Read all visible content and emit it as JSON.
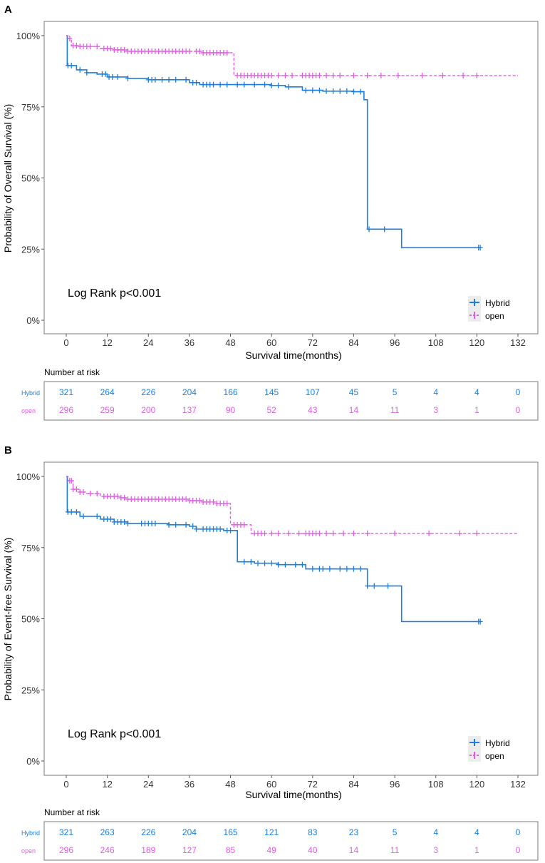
{
  "panels": [
    {
      "letter": "A",
      "ylabel": "Probability of Overall Survival (%)",
      "xlabel": "Survival time(months)",
      "annotation": "Log Rank p<0.001",
      "risk_title": "Number at risk"
    },
    {
      "letter": "B",
      "ylabel": "Probability of Event-free Survival (%)",
      "xlabel": "Survival time(months)",
      "annotation": "Log Rank p<0.001",
      "risk_title": "Number at risk"
    }
  ],
  "legend": {
    "hybrid": "Hybrid",
    "open": "open"
  },
  "colors": {
    "hybrid": "#1a7fe0",
    "open": "#e35be8"
  },
  "chart_data": [
    {
      "type": "line",
      "title": "A",
      "xlabel": "Survival time(months)",
      "ylabel": "Probability of Overall Survival (%)",
      "xlim": [
        0,
        132
      ],
      "ylim": [
        0,
        100
      ],
      "xticks": [
        0,
        12,
        24,
        36,
        48,
        60,
        72,
        84,
        96,
        108,
        120,
        132
      ],
      "yticks": [
        "0%",
        "25%",
        "50%",
        "75%",
        "100%"
      ],
      "series": [
        {
          "name": "Hybrid",
          "steps": [
            [
              0,
              100
            ],
            [
              0.3,
              89.5
            ],
            [
              3,
              88
            ],
            [
              6,
              87
            ],
            [
              9,
              86.5
            ],
            [
              12,
              85.5
            ],
            [
              18,
              85
            ],
            [
              24,
              84.5
            ],
            [
              36,
              83.5
            ],
            [
              39,
              82.8
            ],
            [
              60,
              82.5
            ],
            [
              64,
              82
            ],
            [
              69,
              80.8
            ],
            [
              75,
              80.5
            ],
            [
              84,
              80.3
            ],
            [
              87,
              77.5
            ],
            [
              88,
              32
            ],
            [
              98,
              25.5
            ],
            [
              121,
              25.5
            ]
          ],
          "censor": [
            0.5,
            1.5,
            4,
            6,
            10.5,
            11.5,
            12.5,
            13.5,
            15,
            18,
            24,
            25,
            26,
            28,
            30,
            32,
            35,
            37,
            38,
            40,
            41,
            42,
            43,
            45,
            47,
            50,
            52,
            55,
            58,
            60,
            62,
            65,
            70,
            72,
            74,
            76,
            78,
            80,
            82,
            84,
            86,
            88.5,
            93,
            120.5,
            121
          ]
        },
        {
          "name": "open",
          "steps": [
            [
              0,
              100
            ],
            [
              0.5,
              99
            ],
            [
              1.5,
              96.5
            ],
            [
              4,
              96.2
            ],
            [
              10,
              95.5
            ],
            [
              14,
              95
            ],
            [
              18,
              94.5
            ],
            [
              40,
              94
            ],
            [
              49,
              86
            ],
            [
              132,
              86
            ]
          ],
          "censor": [
            1,
            2,
            3,
            4,
            5,
            6,
            7,
            9,
            11,
            12,
            13,
            14,
            15,
            16,
            17,
            18,
            19,
            20,
            21,
            22,
            23,
            24,
            25,
            26,
            27,
            28,
            29,
            30,
            31,
            32,
            33,
            34,
            35,
            36,
            38,
            39,
            40,
            41,
            42,
            43,
            44,
            45,
            46,
            47,
            50,
            51,
            52,
            53,
            54,
            55,
            56,
            57,
            58,
            59,
            60,
            62,
            64,
            66,
            69,
            70,
            71,
            72,
            73,
            74,
            76,
            78,
            80,
            84,
            88,
            92,
            97,
            104,
            110,
            116,
            120
          ]
        }
      ],
      "risk_table": {
        "title": "Number at risk",
        "rows": [
          {
            "name": "Hybrid",
            "values": [
              321,
              264,
              226,
              204,
              166,
              145,
              107,
              45,
              5,
              4,
              4,
              0
            ]
          },
          {
            "name": "open",
            "values": [
              296,
              259,
              200,
              137,
              90,
              52,
              43,
              14,
              11,
              3,
              1,
              0
            ]
          }
        ]
      }
    },
    {
      "type": "line",
      "title": "B",
      "xlabel": "Survival time(months)",
      "ylabel": "Probability of Event-free Survival (%)",
      "xlim": [
        0,
        132
      ],
      "ylim": [
        0,
        100
      ],
      "xticks": [
        0,
        12,
        24,
        36,
        48,
        60,
        72,
        84,
        96,
        108,
        120,
        132
      ],
      "yticks": [
        "0%",
        "25%",
        "50%",
        "75%",
        "100%"
      ],
      "series": [
        {
          "name": "Hybrid",
          "steps": [
            [
              0,
              100
            ],
            [
              0.3,
              87.5
            ],
            [
              4,
              86
            ],
            [
              10,
              85
            ],
            [
              14,
              84
            ],
            [
              18,
              83.5
            ],
            [
              30,
              83
            ],
            [
              36,
              82.5
            ],
            [
              38,
              81.5
            ],
            [
              46,
              81
            ],
            [
              50,
              70
            ],
            [
              55,
              69.5
            ],
            [
              62,
              69
            ],
            [
              70,
              67.5
            ],
            [
              88,
              61.5
            ],
            [
              98,
              49
            ],
            [
              121,
              49
            ]
          ],
          "censor": [
            0.5,
            1.5,
            3,
            5,
            9,
            11,
            12,
            13,
            14,
            15,
            16,
            17,
            18,
            22,
            23,
            24,
            25,
            26,
            30,
            32,
            35,
            37,
            38,
            40,
            41,
            42,
            43,
            44,
            45,
            47,
            48,
            52,
            54,
            56,
            58,
            60,
            62,
            64,
            67,
            69,
            72,
            74,
            75,
            77,
            80,
            82,
            84,
            86,
            88,
            90,
            94,
            120.5,
            121
          ]
        },
        {
          "name": "open",
          "steps": [
            [
              0,
              100
            ],
            [
              0.5,
              98.5
            ],
            [
              2,
              95.5
            ],
            [
              4,
              94.5
            ],
            [
              6,
              94
            ],
            [
              10,
              93
            ],
            [
              16,
              92.5
            ],
            [
              18,
              92
            ],
            [
              36,
              91.5
            ],
            [
              40,
              91
            ],
            [
              44,
              90.5
            ],
            [
              48,
              83
            ],
            [
              54,
              80
            ],
            [
              132,
              80
            ]
          ],
          "censor": [
            1,
            1.5,
            2,
            3,
            4,
            5,
            7,
            9,
            11,
            12,
            13,
            14,
            15,
            16,
            17,
            18,
            19,
            20,
            21,
            22,
            23,
            24,
            25,
            26,
            27,
            28,
            29,
            30,
            31,
            32,
            33,
            34,
            35,
            36,
            37,
            38,
            39,
            40,
            41,
            42,
            43,
            44,
            45,
            46,
            47,
            49,
            50,
            51,
            52,
            55,
            56,
            57,
            58,
            60,
            62,
            65,
            68,
            70,
            71,
            72,
            73,
            74,
            76,
            78,
            81,
            84,
            88,
            96,
            106,
            115,
            120
          ]
        }
      ],
      "risk_table": {
        "title": "Number at risk",
        "rows": [
          {
            "name": "Hybrid",
            "values": [
              321,
              263,
              226,
              204,
              165,
              121,
              83,
              23,
              5,
              4,
              4,
              0
            ]
          },
          {
            "name": "open",
            "values": [
              296,
              246,
              189,
              127,
              85,
              49,
              40,
              14,
              11,
              3,
              1,
              0
            ]
          }
        ]
      }
    }
  ]
}
